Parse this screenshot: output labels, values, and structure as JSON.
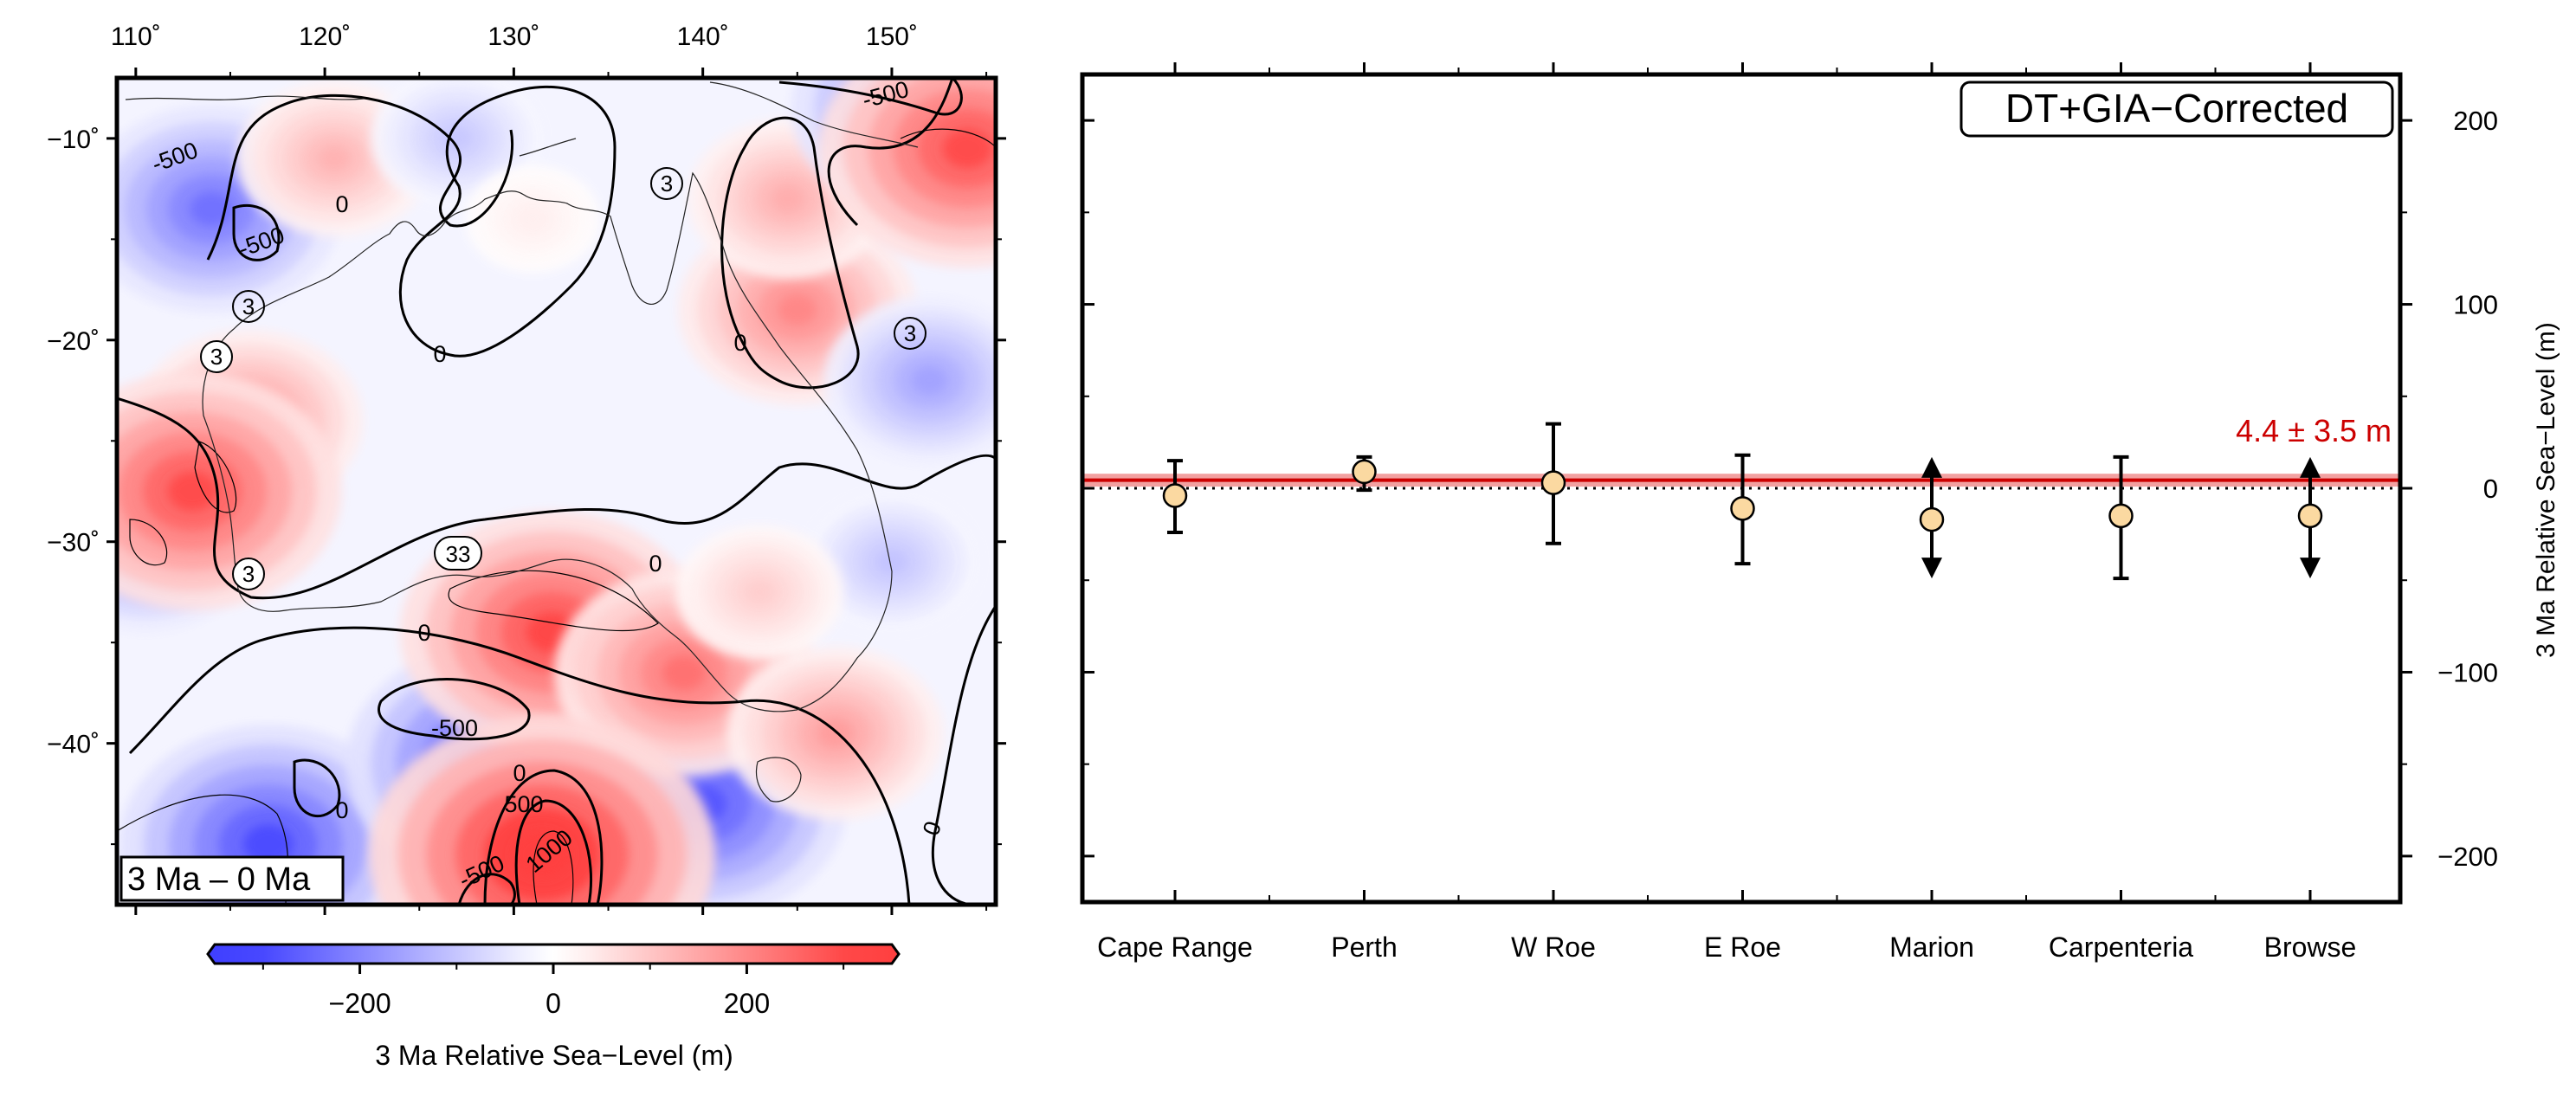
{
  "chart_data": [
    {
      "type": "heatmap",
      "panel_label": "3 Ma – 0 Ma",
      "colorbar": {
        "label": "3 Ma Relative Sea−Level (m)",
        "ticks": [
          "−200",
          "0",
          "200"
        ],
        "tick_values": [
          -200,
          0,
          200
        ],
        "range": [
          -350,
          350
        ],
        "colors": {
          "negative": "#3f3fff",
          "zero": "#ffffff",
          "positive": "#ff3f3f"
        }
      },
      "x_ticks": [
        "110˚",
        "120˚",
        "130˚",
        "140˚",
        "150˚"
      ],
      "x_tick_values": [
        110,
        120,
        130,
        140,
        150
      ],
      "xlim": [
        109,
        155.5
      ],
      "y_ticks": [
        "−10˚",
        "−20˚",
        "−30˚",
        "−40˚"
      ],
      "y_tick_values": [
        -10,
        -20,
        -30,
        -40
      ],
      "ylim": [
        -48,
        -7
      ],
      "contour_labels": [
        "-500",
        "-500",
        "-500",
        "-500",
        "-500",
        "0",
        "0",
        "0",
        "0",
        "0",
        "0",
        "0",
        "0",
        "500",
        "1000",
        "3",
        "3",
        "3",
        "3",
        "3",
        "33"
      ],
      "anomalies": [
        {
          "lon": 114,
          "lat": -13.5,
          "value": -260
        },
        {
          "lon": 110.5,
          "lat": -30,
          "value": -200
        },
        {
          "lon": 117,
          "lat": -45,
          "value": -330
        },
        {
          "lon": 129,
          "lat": -41,
          "value": -330
        },
        {
          "lon": 140,
          "lat": -43,
          "value": -310
        },
        {
          "lon": 116,
          "lat": -24,
          "value": 200
        },
        {
          "lon": 113,
          "lat": -27.5,
          "value": 330
        },
        {
          "lon": 132,
          "lat": -34.5,
          "value": 340
        },
        {
          "lon": 139,
          "lat": -36.5,
          "value": 260
        },
        {
          "lon": 145,
          "lat": -18.5,
          "value": 220
        },
        {
          "lon": 144.5,
          "lat": -13,
          "value": 150
        },
        {
          "lon": 152,
          "lat": -8.5,
          "value": -290
        },
        {
          "lon": 154,
          "lat": -10.5,
          "value": 330
        },
        {
          "lon": 147,
          "lat": -39.5,
          "value": 180
        },
        {
          "lon": 131.5,
          "lat": -45.5,
          "value": 420
        },
        {
          "lon": 152,
          "lat": -22,
          "value": -170
        },
        {
          "lon": 150,
          "lat": -31,
          "value": -110
        },
        {
          "lon": 143,
          "lat": -32.5,
          "value": 90
        },
        {
          "lon": 120.5,
          "lat": -11,
          "value": 140
        },
        {
          "lon": 127,
          "lat": -10,
          "value": -100
        },
        {
          "lon": 131,
          "lat": -14,
          "value": 30
        }
      ]
    },
    {
      "type": "scatter",
      "title": "DT+GIA−Corrected",
      "ylabel": "3 Ma Relative Sea−Level (m)",
      "ylim": [
        -225,
        225
      ],
      "y_ticks": [
        "200",
        "100",
        "0",
        "−100",
        "−200"
      ],
      "y_tick_values": [
        200,
        100,
        0,
        -100,
        -200
      ],
      "categories": [
        "Cape Range",
        "Perth",
        "W Roe",
        "E Roe",
        "Marion",
        "Carpenteria",
        "Browse"
      ],
      "values": [
        -4,
        9,
        3,
        -11,
        -17,
        -15,
        -15
      ],
      "err_high": [
        15,
        17,
        35,
        18,
        null,
        17,
        null
      ],
      "err_low": [
        -24,
        -1,
        -30,
        -41,
        null,
        -49,
        null
      ],
      "bound_arrows": [
        {
          "category": "Marion",
          "up_to": 17,
          "down_to": -49
        },
        {
          "category": "Browse",
          "up_to": 17,
          "down_to": -49
        }
      ],
      "mean": 4.4,
      "mean_uncertainty": 3.5,
      "mean_label": "4.4 ± 3.5 m",
      "colors": {
        "mean": "#cc0000",
        "band": "#f2a0a0",
        "marker": "#fbd9a1"
      }
    }
  ]
}
